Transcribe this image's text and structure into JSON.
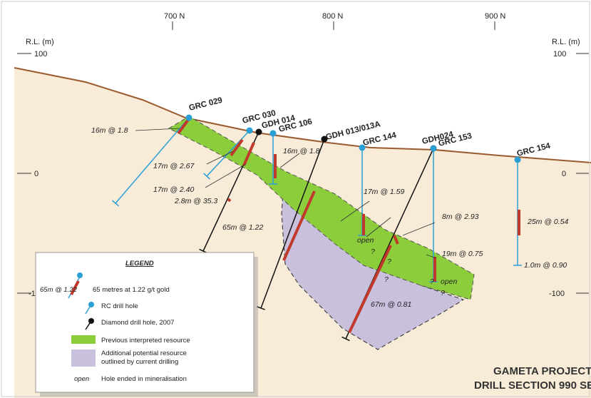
{
  "axes": {
    "left_label": "R.L. (m)",
    "right_label": "R.L. (m)",
    "northings": [
      "700 N",
      "800 N",
      "900 N"
    ],
    "levels": [
      "100",
      "0",
      "-100"
    ]
  },
  "holes": [
    "GRC 029",
    "GRC 030",
    "GDH 014",
    "GRC 106",
    "GDH 013/013A",
    "GRC 144",
    "GDH024",
    "GRC 153",
    "GRC 154"
  ],
  "intercepts": [
    "16m @ 1.8",
    "17m @ 2.67",
    "17m @ 2.40",
    "2.8m @ 35.3",
    "16m @ 1.8",
    "65m @ 1.22",
    "17m @ 1.59",
    "8m @ 2.93",
    "19m @ 0.75",
    "25m @ 0.54",
    "1.0m @ 0.90",
    "67m @ 0.81"
  ],
  "open_labels": [
    "open",
    "open"
  ],
  "queries": [
    "?",
    "?",
    "?",
    "?",
    "?"
  ],
  "legend": {
    "title": "LEGEND",
    "sample": "65m @ 1.22",
    "gold": "65 metres at 1.22 g/t gold",
    "rc": "RC drill hole",
    "diamond": "Diamond drill hole, 2007",
    "previous": "Previous interpreted resource",
    "additional": [
      "Additional potential resource",
      "outlined by current drilling"
    ],
    "open_sample": "open",
    "open_text": "Hole ended in mineralisation"
  },
  "title": [
    "GAMETA PROJECT",
    "DRILL SECTION 990 SE"
  ]
}
